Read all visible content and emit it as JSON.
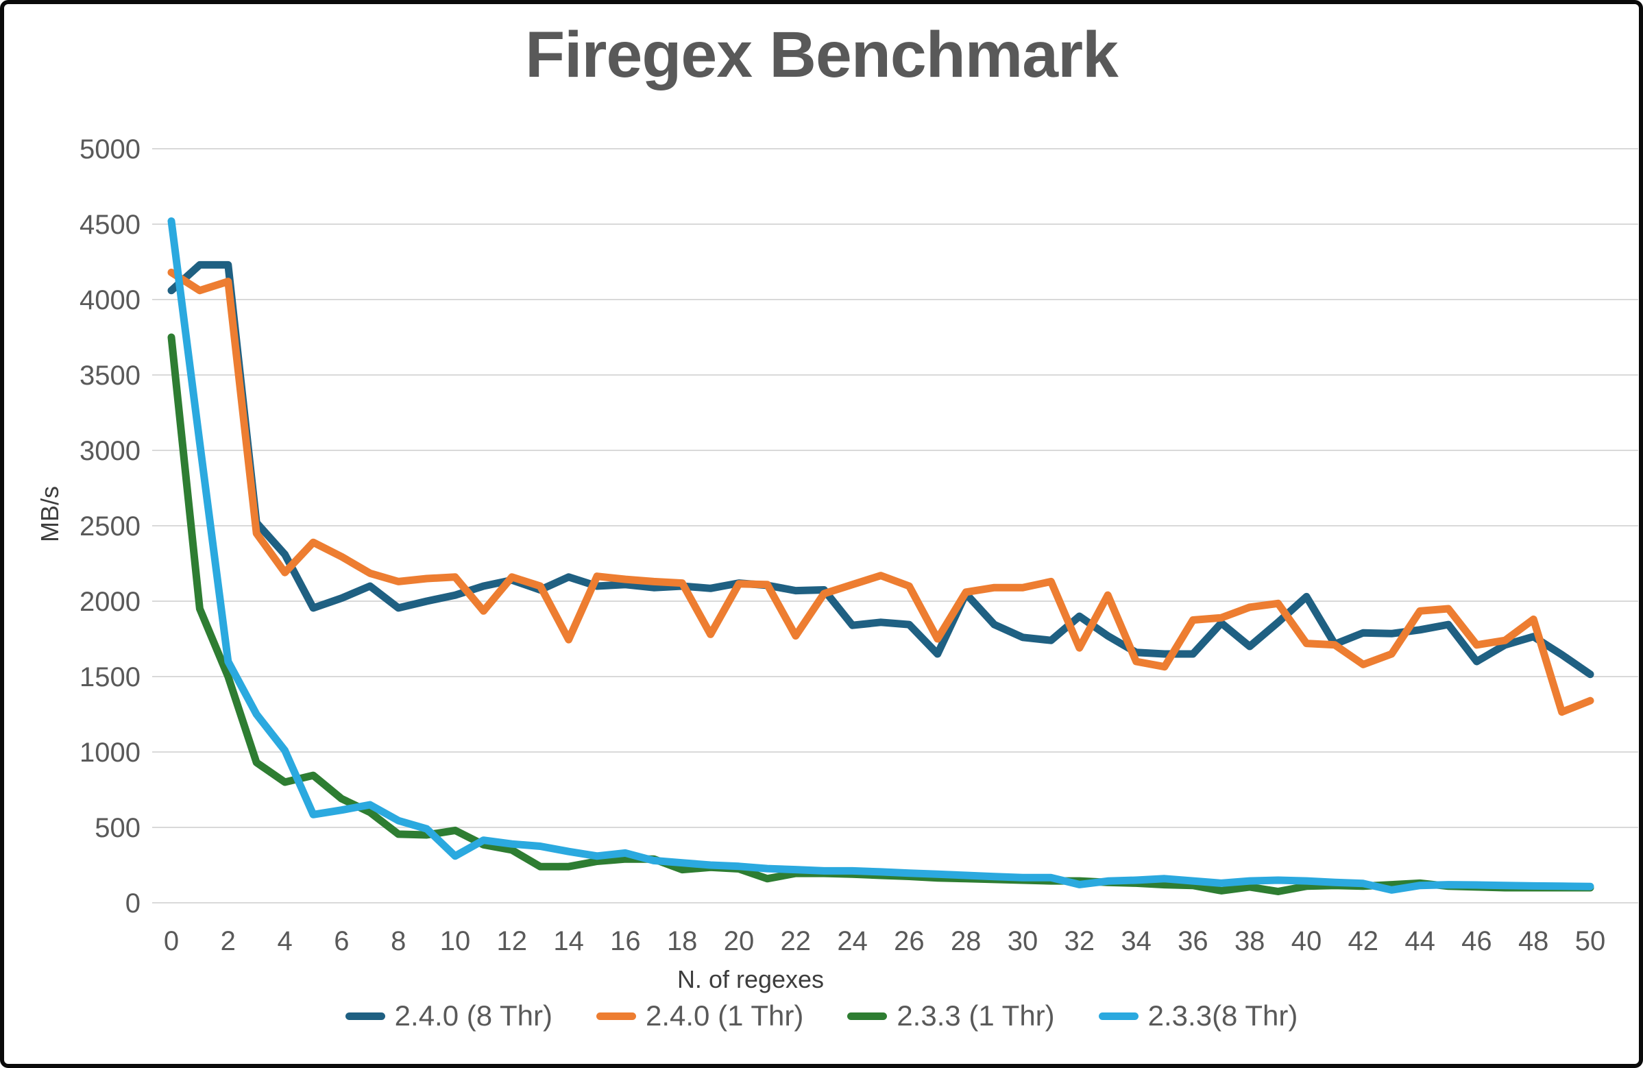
{
  "title": "Firegex Benchmark",
  "axis": {
    "y_title": "MB/s",
    "x_title": "N. of regexes",
    "x_ticks": [
      0,
      2,
      4,
      6,
      8,
      10,
      12,
      14,
      16,
      18,
      20,
      22,
      24,
      26,
      28,
      30,
      32,
      34,
      36,
      38,
      40,
      42,
      44,
      46,
      48,
      50
    ],
    "y_ticks": [
      0,
      500,
      1000,
      1500,
      2000,
      2500,
      3000,
      3500,
      4000,
      4500,
      5000
    ]
  },
  "colors": {
    "title_text": "#595959",
    "tick_text": "#595959",
    "gridline": "#d9d9d9",
    "frame_border": "#0a0a0a"
  },
  "chart_data": {
    "type": "line",
    "title": "Firegex Benchmark",
    "xlabel": "N. of regexes",
    "ylabel": "MB/s",
    "x_range": [
      0,
      50
    ],
    "x_tick_step": 2,
    "ylim": [
      0,
      5000
    ],
    "y_tick_step": 500,
    "grid": "horizontal",
    "legend_position": "bottom",
    "x": [
      0,
      1,
      2,
      3,
      4,
      5,
      6,
      7,
      8,
      9,
      10,
      11,
      12,
      13,
      14,
      15,
      16,
      17,
      18,
      19,
      20,
      21,
      22,
      23,
      24,
      25,
      26,
      27,
      28,
      29,
      30,
      31,
      32,
      33,
      34,
      35,
      36,
      37,
      38,
      39,
      40,
      41,
      42,
      43,
      44,
      45,
      46,
      47,
      48,
      49,
      50
    ],
    "series": [
      {
        "name": "2.4.0 (8 Thr)",
        "color": "#1f6082",
        "values": [
          4060,
          4230,
          4230,
          2520,
          2310,
          1955,
          2020,
          2100,
          1955,
          2000,
          2040,
          2100,
          2140,
          2075,
          2160,
          2100,
          2110,
          2090,
          2100,
          2085,
          2120,
          2105,
          2070,
          2075,
          1840,
          1860,
          1845,
          1650,
          2050,
          1845,
          1760,
          1740,
          1900,
          1770,
          1660,
          1650,
          1650,
          1855,
          1700,
          1860,
          2030,
          1715,
          1790,
          1785,
          1810,
          1845,
          1600,
          1710,
          1765,
          1645,
          1515
        ]
      },
      {
        "name": "2.4.0 (1 Thr)",
        "color": "#ed7d31",
        "values": [
          4180,
          4060,
          4120,
          2450,
          2190,
          2390,
          2295,
          2185,
          2130,
          2150,
          2160,
          1935,
          2160,
          2100,
          1745,
          2165,
          2145,
          2130,
          2120,
          1780,
          2115,
          2110,
          1770,
          2050,
          2110,
          2170,
          2100,
          1750,
          2060,
          2090,
          2090,
          2130,
          1690,
          2040,
          1600,
          1565,
          1875,
          1890,
          1960,
          1985,
          1720,
          1710,
          1580,
          1650,
          1935,
          1950,
          1710,
          1740,
          1880,
          1265,
          1340
        ]
      },
      {
        "name": "2.3.3 (1 Thr)",
        "color": "#2e7d32",
        "values": [
          3750,
          1950,
          1500,
          930,
          800,
          845,
          690,
          600,
          455,
          450,
          480,
          385,
          350,
          240,
          240,
          275,
          290,
          290,
          220,
          235,
          225,
          160,
          195,
          195,
          190,
          182,
          175,
          165,
          160,
          155,
          150,
          145,
          145,
          135,
          130,
          120,
          115,
          80,
          105,
          75,
          110,
          115,
          110,
          120,
          130,
          110,
          105,
          100,
          100,
          100,
          100
        ]
      },
      {
        "name": "2.3.3(8 Thr)",
        "color": "#2ba9df",
        "values": [
          4520,
          3050,
          1600,
          1250,
          1010,
          585,
          615,
          650,
          545,
          490,
          310,
          415,
          390,
          375,
          340,
          310,
          330,
          280,
          265,
          250,
          242,
          227,
          220,
          212,
          212,
          205,
          197,
          190,
          182,
          174,
          167,
          167,
          121,
          144,
          150,
          160,
          145,
          130,
          145,
          150,
          145,
          135,
          128,
          85,
          115,
          120,
          118,
          115,
          112,
          110,
          108
        ]
      }
    ]
  }
}
